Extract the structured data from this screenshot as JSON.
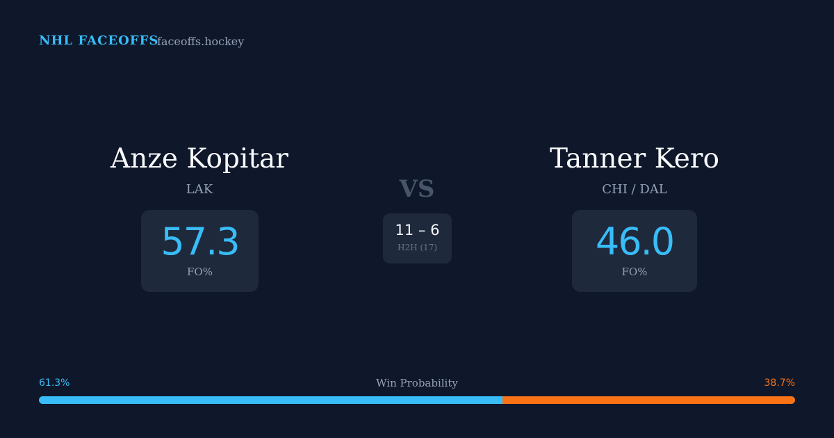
{
  "header": {
    "title": "NHL FACEOFFS",
    "site": "faceoffs.hockey"
  },
  "players": [
    {
      "name": "Anze Kopitar",
      "team": "LAK",
      "fo_pct": "57.3",
      "fo_label": "FO%"
    },
    {
      "name": "Tanner Kero",
      "team": "CHI / DAL",
      "fo_pct": "46.0",
      "fo_label": "FO%"
    }
  ],
  "vs": "VS",
  "h2h": {
    "score": "11 – 6",
    "label": "H2H (17)"
  },
  "win_probability": {
    "label": "Win Probability",
    "values": [
      61.3,
      38.7
    ],
    "value_labels": [
      "61.3%",
      "38.7%"
    ],
    "colors": [
      "#38bdf8",
      "#f97316"
    ]
  }
}
